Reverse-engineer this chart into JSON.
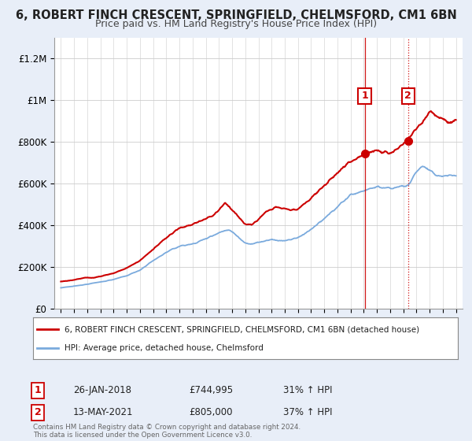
{
  "title": "6, ROBERT FINCH CRESCENT, SPRINGFIELD, CHELMSFORD, CM1 6BN",
  "subtitle": "Price paid vs. HM Land Registry's House Price Index (HPI)",
  "legend_line1": "6, ROBERT FINCH CRESCENT, SPRINGFIELD, CHELMSFORD, CM1 6BN (detached house)",
  "legend_line2": "HPI: Average price, detached house, Chelmsford",
  "footer": "Contains HM Land Registry data © Crown copyright and database right 2024.\nThis data is licensed under the Open Government Licence v3.0.",
  "sale1_label": "1",
  "sale1_date": "26-JAN-2018",
  "sale1_price": "£744,995",
  "sale1_hpi": "31% ↑ HPI",
  "sale2_label": "2",
  "sale2_date": "13-MAY-2021",
  "sale2_price": "£805,000",
  "sale2_hpi": "37% ↑ HPI",
  "sale1_year": 2018.07,
  "sale2_year": 2021.37,
  "sale1_price_val": 744995,
  "sale2_price_val": 805000,
  "red_color": "#cc0000",
  "blue_color": "#7aaadd",
  "background_color": "#e8eef8",
  "plot_bg_color": "#ffffff",
  "ylim": [
    0,
    1300000
  ],
  "xlim": [
    1994.5,
    2025.5
  ],
  "yticks": [
    0,
    200000,
    400000,
    600000,
    800000,
    1000000,
    1200000
  ],
  "ytick_labels": [
    "£0",
    "£200K",
    "£400K",
    "£600K",
    "£800K",
    "£1M",
    "£1.2M"
  ],
  "xticks": [
    1995,
    1996,
    1997,
    1998,
    1999,
    2000,
    2001,
    2002,
    2003,
    2004,
    2005,
    2006,
    2007,
    2008,
    2009,
    2010,
    2011,
    2012,
    2013,
    2014,
    2015,
    2016,
    2017,
    2018,
    2019,
    2020,
    2021,
    2022,
    2023,
    2024,
    2025
  ]
}
